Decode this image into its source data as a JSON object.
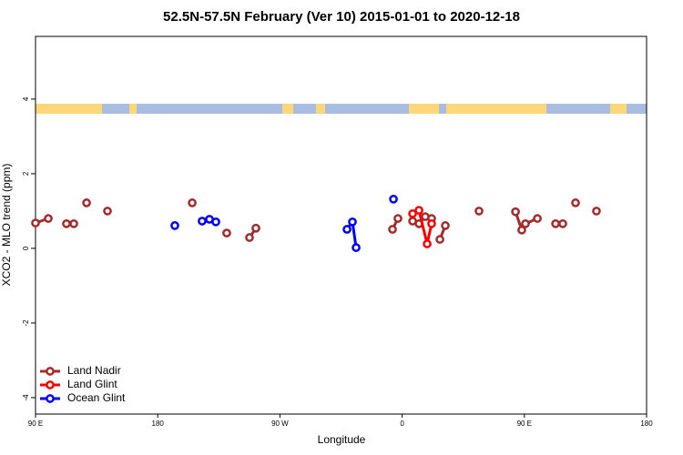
{
  "chart_data": {
    "type": "line",
    "title": "52.5N-57.5N February (Ver 10)   2015-01-01 to 2020-12-18",
    "xlabel": "Longitude",
    "ylabel": "XCO2 - MLO trend (ppm)",
    "xlim": [
      90,
      540
    ],
    "xticks": [
      {
        "value": 90,
        "label": "90 E"
      },
      180,
      {
        "value": 270,
        "label": "90 W"
      },
      {
        "value": 360,
        "label": "0"
      },
      {
        "value": 450,
        "label": "90 E"
      },
      {
        "value": 540,
        "label": "180"
      }
    ],
    "ylim": [
      -4.44,
      5.68
    ],
    "yticks": [
      -4,
      -2,
      0,
      2,
      4
    ],
    "legend": "bottom-left",
    "series": [
      {
        "name": "Land Nadir",
        "color": "#a52a2a",
        "x": [
          90,
          99.4,
          null,
          112.8,
          118.2,
          null,
          127.6,
          null,
          143,
          null,
          205.4,
          null,
          230.8,
          null,
          247.6,
          252.3,
          null,
          352.9,
          356.9,
          null,
          367.7,
          372.4,
          377,
          381.7,
          null,
          387.8,
          391.8,
          null,
          416.6,
          null,
          443.5,
          448.1,
          450.8,
          459.6,
          null,
          473,
          478.3,
          null,
          487.7,
          null,
          503.1
        ],
        "values": [
          0.68,
          0.8,
          null,
          0.66,
          0.66,
          null,
          1.22,
          null,
          1.0,
          null,
          1.22,
          null,
          0.41,
          null,
          0.29,
          0.54,
          null,
          0.51,
          0.8,
          null,
          0.73,
          0.66,
          0.85,
          0.8,
          null,
          0.24,
          0.61,
          null,
          1.0,
          null,
          0.98,
          0.49,
          0.66,
          0.8,
          null,
          0.66,
          0.66,
          null,
          1.22,
          null,
          1.0
        ]
      },
      {
        "name": "Land Glint",
        "color": "#ff0000",
        "x": [
          367.7,
          372.4,
          378.4,
          381.7
        ],
        "values": [
          0.93,
          1.02,
          0.12,
          0.66
        ]
      },
      {
        "name": "Ocean Glint",
        "color": "#0000ff",
        "x": [
          192.6,
          null,
          212.7,
          218.1,
          222.8,
          null,
          319.4,
          323.4,
          326.1,
          null,
          353.6
        ],
        "values": [
          0.61,
          null,
          0.73,
          0.78,
          0.71,
          null,
          0.51,
          0.71,
          0.02,
          null,
          1.32
        ]
      }
    ]
  }
}
